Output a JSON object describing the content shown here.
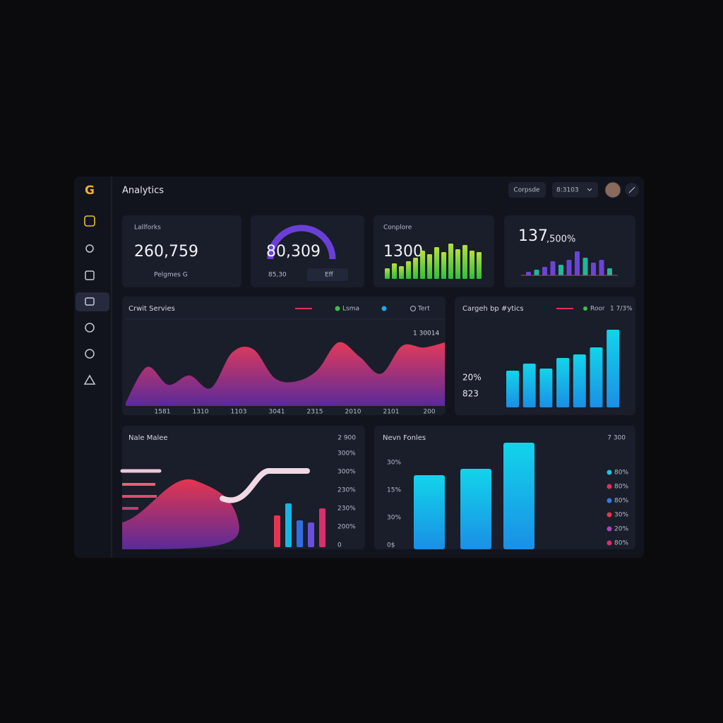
{
  "sidebar": {
    "logo": "G"
  },
  "header": {
    "title": "Analytics",
    "button": "Corpsde",
    "dropdown": "8:3103"
  },
  "kpis": [
    {
      "label": "Lallforks",
      "value": "260,759",
      "footer": "Pelgmes G"
    },
    {
      "value": "80,309",
      "footer": "85,30",
      "button": "Eff"
    },
    {
      "label": "Conplore",
      "value": "1300",
      "bars": [
        15,
        22,
        18,
        25,
        30,
        40,
        35,
        45,
        38,
        50,
        42,
        48,
        40,
        38
      ]
    },
    {
      "value": "137",
      "unit": ",500%",
      "bars": [
        5,
        8,
        12,
        20,
        15,
        22,
        34,
        25,
        18,
        22,
        10
      ]
    }
  ],
  "area_card": {
    "title": "Crwit Servies",
    "legend": [
      "Lsma",
      "Tert"
    ],
    "annotation": "1 30014",
    "x_labels": [
      "1581",
      "1310",
      "1103",
      "3041",
      "2315",
      "2010",
      "2101",
      "200"
    ],
    "values": [
      4,
      46,
      25,
      36,
      21,
      63,
      67,
      33,
      29,
      42,
      75,
      58,
      38,
      71,
      69,
      75
    ]
  },
  "bar_card": {
    "title": "Cargeh bp #ytics",
    "legend": [
      "Roor",
      "1 7/3%"
    ],
    "stat": "20%",
    "stat2": "823",
    "values": [
      52,
      62,
      55,
      70,
      75,
      85,
      110
    ]
  },
  "blob_card": {
    "title": "Nale Malee",
    "total": "2 900",
    "y_labels": [
      "300%",
      "300%",
      "230%",
      "230%",
      "200%",
      "0"
    ],
    "values": [
      45,
      62,
      38,
      35,
      55
    ],
    "colors": [
      "#e8344f",
      "#14b8e0",
      "#2f6fe0",
      "#6a4ee0",
      "#d8306a"
    ]
  },
  "series_card": {
    "title": "Nevn Fonles",
    "total": "7 300",
    "y_labels": [
      "30%",
      "15%",
      "30%",
      "0$"
    ],
    "values": [
      105,
      114,
      151
    ],
    "legend": [
      {
        "label": "80%",
        "color": "#18c8e0"
      },
      {
        "label": "80%",
        "color": "#e0305a"
      },
      {
        "label": "80%",
        "color": "#2f7be8"
      },
      {
        "label": "30%",
        "color": "#e8344f"
      },
      {
        "label": "20%",
        "color": "#b040c0"
      },
      {
        "label": "80%",
        "color": "#d83070"
      }
    ]
  }
}
